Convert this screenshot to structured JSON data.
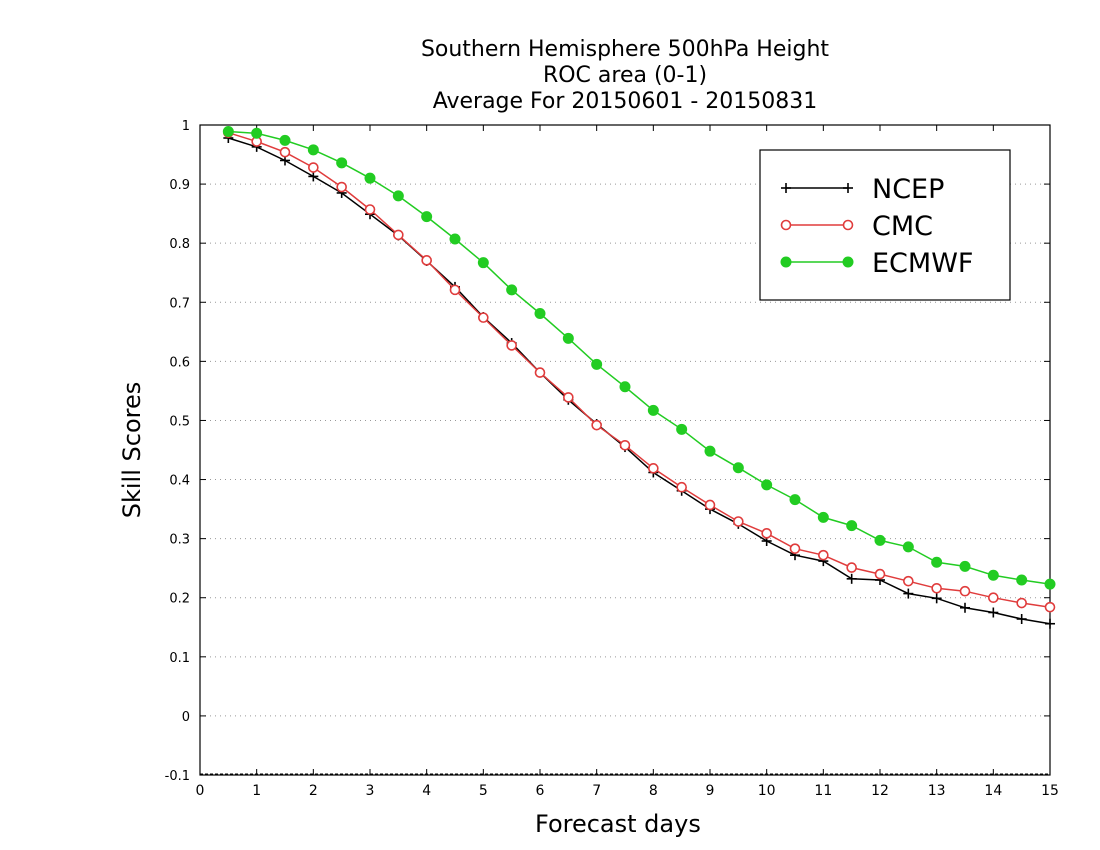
{
  "chart_data": {
    "type": "line",
    "title_lines": [
      "Southern Hemisphere 500hPa Height",
      "ROC area (0-1)",
      "Average For 20150601 - 20150831"
    ],
    "xlabel": "Forecast days",
    "ylabel": "Skill Scores",
    "xlim": [
      0,
      15
    ],
    "ylim": [
      -0.1,
      1
    ],
    "x_ticks": [
      "0",
      "1",
      "2",
      "3",
      "4",
      "5",
      "6",
      "7",
      "8",
      "9",
      "10",
      "11",
      "12",
      "13",
      "14",
      "15"
    ],
    "y_ticks": [
      "-0.1",
      "0",
      "0.1",
      "0.2",
      "0.3",
      "0.4",
      "0.5",
      "0.6",
      "0.7",
      "0.8",
      "0.9",
      "1"
    ],
    "grid": "horizontal dotted",
    "legend_position": "top-right",
    "x": [
      0.5,
      1,
      1.5,
      2,
      2.5,
      3,
      3.5,
      4,
      4.5,
      5,
      5.5,
      6,
      6.5,
      7,
      7.5,
      8,
      8.5,
      9,
      9.5,
      10,
      10.5,
      11,
      11.5,
      12,
      12.5,
      13,
      13.5,
      14,
      14.5,
      15
    ],
    "series": [
      {
        "name": "NCEP",
        "color": "#000000",
        "marker": "plus",
        "values": [
          0.978,
          0.963,
          0.94,
          0.913,
          0.885,
          0.849,
          0.813,
          0.77,
          0.726,
          0.675,
          0.631,
          0.581,
          0.535,
          0.494,
          0.455,
          0.412,
          0.381,
          0.35,
          0.325,
          0.296,
          0.272,
          0.262,
          0.232,
          0.23,
          0.207,
          0.199,
          0.183,
          0.175,
          0.164,
          0.156
        ]
      },
      {
        "name": "CMC",
        "color": "#e03c3c",
        "marker": "open-circle",
        "values": [
          0.987,
          0.972,
          0.954,
          0.928,
          0.895,
          0.857,
          0.814,
          0.771,
          0.721,
          0.674,
          0.627,
          0.581,
          0.539,
          0.492,
          0.458,
          0.419,
          0.387,
          0.357,
          0.329,
          0.309,
          0.283,
          0.272,
          0.251,
          0.24,
          0.228,
          0.216,
          0.211,
          0.2,
          0.191,
          0.184
        ]
      },
      {
        "name": "ECMWF",
        "color": "#22cc22",
        "marker": "filled-circle",
        "values": [
          0.989,
          0.986,
          0.974,
          0.958,
          0.936,
          0.91,
          0.88,
          0.845,
          0.807,
          0.767,
          0.721,
          0.681,
          0.639,
          0.595,
          0.557,
          0.517,
          0.485,
          0.448,
          0.42,
          0.391,
          0.366,
          0.336,
          0.322,
          0.297,
          0.286,
          0.26,
          0.253,
          0.238,
          0.23,
          0.223
        ]
      }
    ]
  }
}
